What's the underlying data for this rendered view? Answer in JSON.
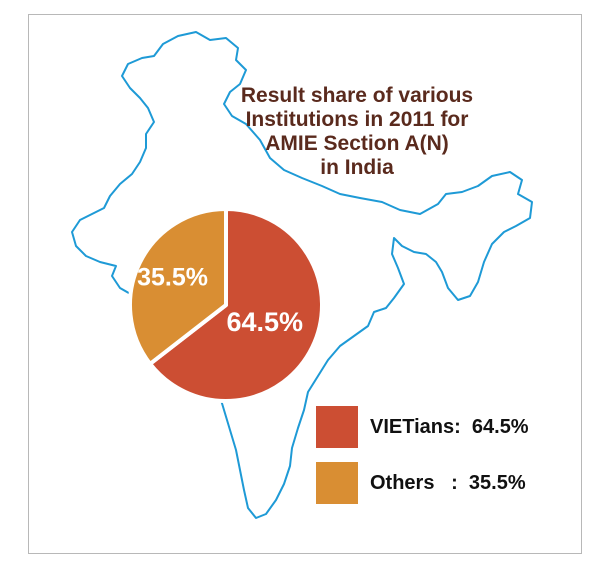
{
  "chart_data": {
    "type": "pie",
    "title_lines": [
      "Result share of various",
      "Institutions in 2011 for",
      "AMIE Section A(N)",
      "in India"
    ],
    "slices": [
      {
        "name": "VIETians",
        "value": 64.5,
        "label": "64.5%",
        "color": "#cc4e33",
        "legend_text": "VIETians:  64.5%"
      },
      {
        "name": "Others",
        "value": 35.5,
        "label": "35.5%",
        "color": "#d98e33",
        "legend_text": "Others   :  35.5%"
      }
    ],
    "legend_position": "bottom-right",
    "background_map": "india-outline",
    "map_color": "#1e9ad6"
  }
}
